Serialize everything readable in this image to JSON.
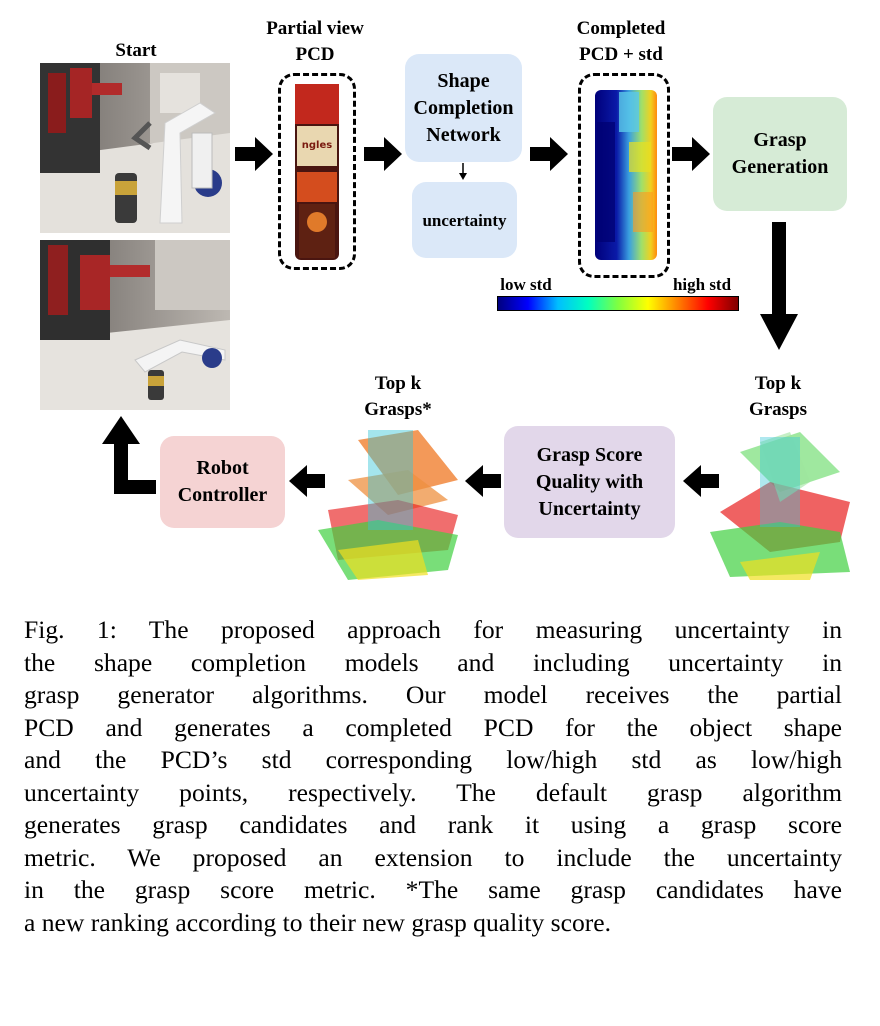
{
  "diagram": {
    "start_label": "Start",
    "partial_label": [
      "Partial view",
      "PCD"
    ],
    "completed_label": [
      "Completed",
      "PCD + std"
    ],
    "shape_network": [
      "Shape",
      "Completion",
      "Network"
    ],
    "uncertainty": "uncertainty",
    "grasp_generation": [
      "Grasp",
      "Generation"
    ],
    "colorbar_low": "low std",
    "colorbar_high": "high std",
    "topk_right": [
      "Top k",
      "Grasps"
    ],
    "topk_left": [
      "Top k",
      "Grasps*"
    ],
    "grasp_score": [
      "Grasp Score",
      "Quality with",
      "Uncertainty"
    ],
    "robot_controller": [
      "Robot",
      "Controller"
    ],
    "colors": {
      "blue_box": "#dbe8f8",
      "green_box": "#d6ebd6",
      "purple_box": "#e2d7ea",
      "pink_box": "#f5d3d3"
    }
  },
  "caption": {
    "lines": [
      "Fig. 1: The proposed approach for measuring uncertainty in",
      "the shape completion models and including uncertainty in",
      "grasp generator algorithms. Our model receives the partial",
      "PCD and generates a completed PCD for the object shape",
      "and the PCD’s std corresponding low/high std as low/high",
      "uncertainty points, respectively. The default grasp algorithm",
      "generates grasp candidates and rank it using a grasp score",
      "metric. We proposed an extension to include the uncertainty",
      "in the grasp score metric. *The same grasp candidates have",
      "a new ranking according to their new grasp quality score."
    ]
  }
}
